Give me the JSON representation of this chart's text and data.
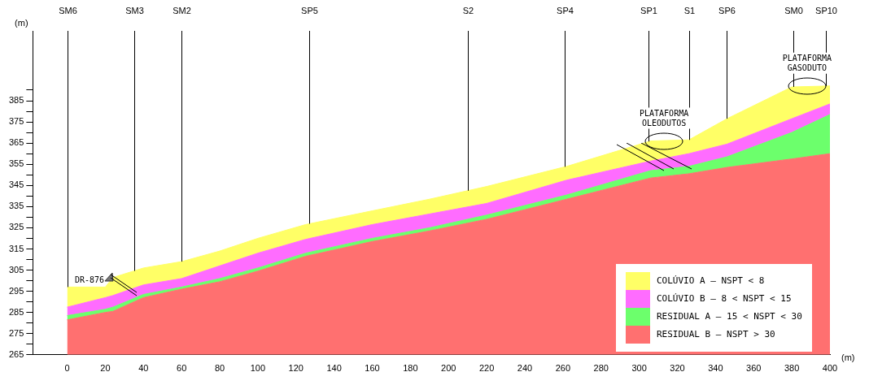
{
  "chart_data": {
    "type": "area",
    "x": [
      0,
      20,
      24,
      40,
      60,
      80,
      100,
      125,
      160,
      190,
      220,
      262,
      306,
      326,
      346,
      380,
      400
    ],
    "series": [
      {
        "name": "RESIDUAL B – NSPT > 30",
        "color": "#ff7070",
        "values": [
          281.5,
          285,
          285.5,
          292,
          296,
          299.5,
          304.5,
          311.5,
          318.5,
          323.5,
          329,
          338.5,
          348.5,
          350.5,
          353.5,
          357.5,
          360
        ]
      },
      {
        "name": "RESIDUAL A – 15 < NSPT < 30",
        "color": "#6cff6c",
        "values": [
          283.5,
          286.5,
          287.5,
          293.5,
          297,
          301,
          306,
          313,
          320,
          325,
          331,
          340.5,
          352,
          354,
          358.5,
          370,
          378.5
        ]
      },
      {
        "name": "COLÚVIO B – 8 < NSPT < 15",
        "color": "#ff6cff",
        "values": [
          287.5,
          292,
          293,
          298,
          301,
          307,
          313,
          319.5,
          326.5,
          331.5,
          336.5,
          347.5,
          356.5,
          360,
          364.5,
          376.5,
          383.5
        ]
      },
      {
        "name": "COLÚVIO A – NSPT < 8",
        "color": "#ffff66",
        "values": [
          297,
          297,
          301.5,
          306,
          309,
          314,
          320,
          326.5,
          333,
          338.5,
          344.5,
          354,
          366,
          366.5,
          376.5,
          391.5,
          392
        ]
      }
    ],
    "xlim": [
      -18,
      400
    ],
    "xticks": [
      0,
      20,
      40,
      60,
      80,
      100,
      120,
      140,
      160,
      180,
      200,
      220,
      240,
      260,
      280,
      300,
      320,
      340,
      360,
      380,
      400
    ],
    "ylim": [
      265,
      418
    ],
    "yticks": [
      265,
      {
        "value": 270,
        "label": null
      },
      275,
      {
        "value": 280,
        "label": null
      },
      285,
      {
        "value": 290,
        "label": null
      },
      295,
      {
        "value": 300,
        "label": null
      },
      305,
      {
        "value": 310,
        "label": null
      },
      315,
      {
        "value": 320,
        "label": null
      },
      325,
      {
        "value": 330,
        "label": null
      },
      335,
      {
        "value": 340,
        "label": null
      },
      345,
      {
        "value": 350,
        "label": null
      },
      355,
      {
        "value": 360,
        "label": null
      },
      365,
      {
        "value": 370,
        "label": null
      },
      375,
      {
        "value": 380,
        "label": null
      },
      385,
      {
        "value": 390,
        "label": null
      }
    ],
    "xlabel": "(m)",
    "ylabel": "(m)",
    "grid": false,
    "legend": "bottom right",
    "ref_lines": [
      {
        "axis": "x",
        "value": 0,
        "label": "SM6"
      },
      {
        "axis": "x",
        "value": 35,
        "label": "SM3"
      },
      {
        "axis": "x",
        "value": 60,
        "label": "SM2"
      },
      {
        "axis": "x",
        "value": 127,
        "label": "SP5"
      },
      {
        "axis": "x",
        "value": 210,
        "label": "S2"
      },
      {
        "axis": "x",
        "value": 261,
        "label": "SP4"
      },
      {
        "axis": "x",
        "value": 305,
        "label": "SP1"
      },
      {
        "axis": "x",
        "value": 326,
        "label": "S1"
      },
      {
        "axis": "x",
        "value": 346,
        "label": "SP6"
      },
      {
        "axis": "x",
        "value": 381,
        "label": "SM0"
      },
      {
        "axis": "x",
        "value": 398,
        "label": "SP10"
      }
    ],
    "annotations": [
      {
        "text": "DR-876",
        "x": 22,
        "y": 300
      },
      {
        "text": "PLATAFORMA OLEODUTOS",
        "x": 313,
        "y": 366
      },
      {
        "text": "PLATAFORMA GASODUTO",
        "x": 388,
        "y": 392
      }
    ]
  }
}
